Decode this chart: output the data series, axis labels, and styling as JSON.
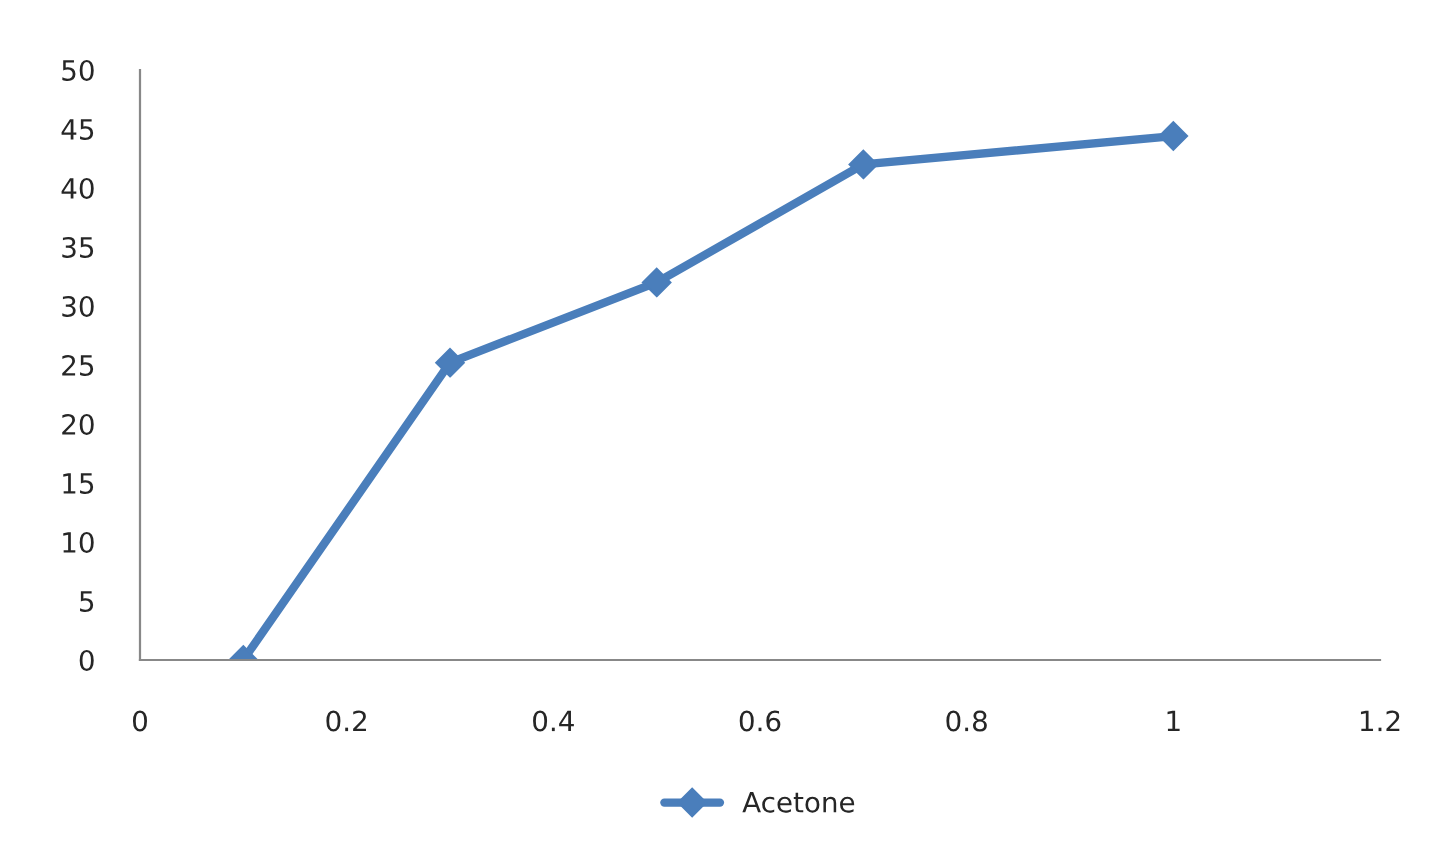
{
  "chart_data": {
    "type": "line",
    "x": [
      0.1,
      0.3,
      0.5,
      0.7,
      1.0
    ],
    "series": [
      {
        "name": "Acetone",
        "color": "#4a7ebb",
        "values": [
          0,
          25.2,
          32.0,
          42.0,
          44.4
        ]
      }
    ],
    "xlim": [
      0,
      1.2
    ],
    "xticks": [
      0,
      0.2,
      0.4,
      0.6,
      0.8,
      1,
      1.2
    ],
    "ylim": [
      0,
      50
    ],
    "yticks": [
      0,
      5,
      10,
      15,
      20,
      25,
      30,
      35,
      40,
      45,
      50
    ],
    "grid": false,
    "legend": "bottom",
    "marker": "diamond",
    "line_style": "solid"
  }
}
